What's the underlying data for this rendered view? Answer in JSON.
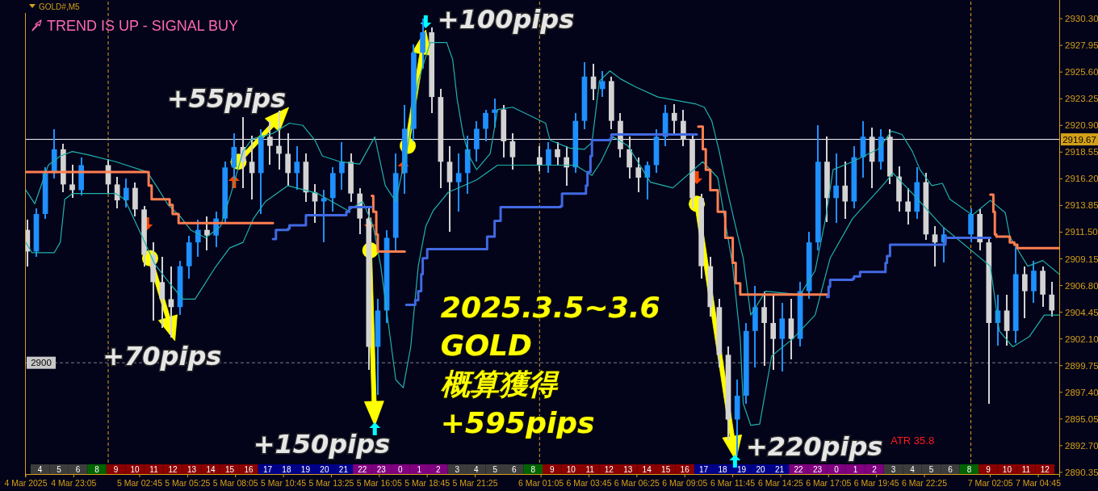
{
  "chart_data": [
    {
      "type": "candlestick",
      "title": "GOLD#,M5",
      "subtitle": "TREND IS UP - SIGNAL BUY",
      "x": [
        "2025-03-04T20:30",
        "2025-03-04T21:00",
        "2025-03-04T21:30",
        "2025-03-04T22:00",
        "2025-03-04T22:30",
        "2025-03-04T23:00",
        "2025-03-04T23:30",
        "2025-03-05T01:00",
        "2025-03-05T01:30",
        "2025-03-05T02:00",
        "2025-03-05T02:30",
        "2025-03-05T03:00",
        "2025-03-05T03:30",
        "2025-03-05T04:00",
        "2025-03-05T04:30",
        "2025-03-05T05:00",
        "2025-03-05T05:30",
        "2025-03-05T06:00",
        "2025-03-05T06:30",
        "2025-03-05T07:00",
        "2025-03-05T07:30",
        "2025-03-05T08:00",
        "2025-03-05T08:30",
        "2025-03-05T09:00",
        "2025-03-05T09:30",
        "2025-03-05T10:00",
        "2025-03-05T10:30",
        "2025-03-05T11:00",
        "2025-03-05T11:30",
        "2025-03-05T12:00",
        "2025-03-05T12:30",
        "2025-03-05T13:00",
        "2025-03-05T13:30",
        "2025-03-05T14:00",
        "2025-03-05T14:30",
        "2025-03-05T15:00",
        "2025-03-05T15:30",
        "2025-03-05T16:00",
        "2025-03-05T16:30",
        "2025-03-05T17:00",
        "2025-03-05T17:30",
        "2025-03-05T18:00",
        "2025-03-05T18:30",
        "2025-03-05T19:00",
        "2025-03-05T19:30",
        "2025-03-05T20:00",
        "2025-03-05T20:30",
        "2025-03-05T21:00",
        "2025-03-05T21:30",
        "2025-03-05T22:00",
        "2025-03-05T22:30",
        "2025-03-05T23:00",
        "2025-03-05T23:30",
        "2025-03-06T01:00",
        "2025-03-06T01:30",
        "2025-03-06T02:00",
        "2025-03-06T02:30",
        "2025-03-06T03:00",
        "2025-03-06T03:30",
        "2025-03-06T04:00",
        "2025-03-06T04:30",
        "2025-03-06T05:00",
        "2025-03-06T05:30",
        "2025-03-06T06:00",
        "2025-03-06T06:30",
        "2025-03-06T07:00",
        "2025-03-06T07:30",
        "2025-03-06T08:00",
        "2025-03-06T08:30",
        "2025-03-06T09:00",
        "2025-03-06T09:30",
        "2025-03-06T10:00",
        "2025-03-06T10:30",
        "2025-03-06T11:00",
        "2025-03-06T11:30",
        "2025-03-06T12:00",
        "2025-03-06T12:30",
        "2025-03-06T13:00",
        "2025-03-06T13:30",
        "2025-03-06T14:00",
        "2025-03-06T14:30",
        "2025-03-06T15:00",
        "2025-03-06T15:30",
        "2025-03-06T16:00",
        "2025-03-06T16:30",
        "2025-03-06T17:00",
        "2025-03-06T17:30",
        "2025-03-06T18:00",
        "2025-03-06T18:30",
        "2025-03-06T19:00",
        "2025-03-06T19:30",
        "2025-03-06T20:00",
        "2025-03-06T20:30",
        "2025-03-06T21:00",
        "2025-03-06T21:30",
        "2025-03-06T22:00",
        "2025-03-06T22:30",
        "2025-03-06T23:00",
        "2025-03-06T23:30",
        "2025-03-07T01:00",
        "2025-03-07T01:30",
        "2025-03-07T02:00",
        "2025-03-07T02:30",
        "2025-03-07T03:00",
        "2025-03-07T03:30",
        "2025-03-07T04:00",
        "2025-03-07T04:30",
        "2025-03-07T05:00",
        "2025-03-07T05:30"
      ],
      "ohlc": [
        [
          2911.7,
          2912.6,
          2908.5,
          2909.8
        ],
        [
          2909.8,
          2913.6,
          2909.3,
          2913.1
        ],
        [
          2913.1,
          2917.2,
          2912.7,
          2916.7
        ],
        [
          2916.7,
          2920.6,
          2916.2,
          2918.8
        ],
        [
          2918.8,
          2919.3,
          2915.0,
          2915.7
        ],
        [
          2915.7,
          2917.4,
          2914.5,
          2915.2
        ],
        [
          2915.2,
          2918.1,
          2914.7,
          2917.4
        ],
        [
          2917.4,
          2917.9,
          2914.9,
          2915.7
        ],
        [
          2915.7,
          2916.4,
          2913.6,
          2914.3
        ],
        [
          2914.3,
          2916.2,
          2913.7,
          2915.4
        ],
        [
          2915.4,
          2915.9,
          2912.9,
          2913.5
        ],
        [
          2913.5,
          2913.8,
          2908.5,
          2909.5
        ],
        [
          2909.5,
          2910.6,
          2903.7,
          2907.1
        ],
        [
          2907.1,
          2909.3,
          2903.1,
          2905.6
        ],
        [
          2905.6,
          2908.5,
          2902.2,
          2904.9
        ],
        [
          2904.9,
          2909.0,
          2904.2,
          2908.5
        ],
        [
          2908.5,
          2911.2,
          2907.4,
          2910.6
        ],
        [
          2910.6,
          2912.6,
          2909.3,
          2911.7
        ],
        [
          2911.7,
          2912.9,
          2909.9,
          2911.2
        ],
        [
          2911.2,
          2913.3,
          2910.2,
          2912.7
        ],
        [
          2912.7,
          2917.7,
          2912.3,
          2917.2
        ],
        [
          2917.2,
          2920.2,
          2916.2,
          2919.0
        ],
        [
          2919.0,
          2921.6,
          2915.4,
          2917.7
        ],
        [
          2917.7,
          2920.0,
          2914.4,
          2916.7
        ],
        [
          2916.7,
          2920.6,
          2913.1,
          2919.9
        ],
        [
          2919.9,
          2921.3,
          2917.4,
          2919.1
        ],
        [
          2919.1,
          2922.2,
          2917.0,
          2918.4
        ],
        [
          2918.4,
          2920.2,
          2915.6,
          2916.7
        ],
        [
          2916.7,
          2919.1,
          2915.2,
          2917.7
        ],
        [
          2917.7,
          2918.4,
          2914.2,
          2915.0
        ],
        [
          2915.0,
          2915.7,
          2912.3,
          2914.2
        ],
        [
          2914.2,
          2915.2,
          2910.6,
          2914.5
        ],
        [
          2914.5,
          2917.2,
          2913.3,
          2916.7
        ],
        [
          2916.7,
          2919.4,
          2915.2,
          2917.7
        ],
        [
          2917.7,
          2918.4,
          2914.2,
          2914.9
        ],
        [
          2914.9,
          2915.4,
          2911.3,
          2912.7
        ],
        [
          2912.7,
          2913.6,
          2899.4,
          2901.4
        ],
        [
          2901.4,
          2905.6,
          2897.2,
          2904.6
        ],
        [
          2904.6,
          2911.7,
          2903.5,
          2911.0
        ],
        [
          2911.0,
          2918.4,
          2909.9,
          2916.7
        ],
        [
          2916.7,
          2922.7,
          2914.9,
          2920.6
        ],
        [
          2920.6,
          2928.0,
          2919.5,
          2927.3
        ],
        [
          2927.3,
          2930.3,
          2925.9,
          2929.1
        ],
        [
          2929.1,
          2929.5,
          2922.0,
          2923.4
        ],
        [
          2923.4,
          2924.1,
          2915.4,
          2917.7
        ],
        [
          2917.7,
          2919.1,
          2911.5,
          2915.9
        ],
        [
          2915.9,
          2918.4,
          2913.3,
          2916.7
        ],
        [
          2916.7,
          2920.0,
          2914.9,
          2918.8
        ],
        [
          2918.8,
          2921.3,
          2917.7,
          2920.6
        ],
        [
          2920.6,
          2922.3,
          2919.5,
          2922.0
        ],
        [
          2922.0,
          2923.3,
          2920.7,
          2922.3
        ],
        [
          2922.3,
          2922.7,
          2918.1,
          2919.5
        ],
        [
          2919.5,
          2920.2,
          2917.0,
          2918.1
        ],
        [
          2918.1,
          2919.1,
          2916.9,
          2917.4
        ],
        [
          2917.4,
          2919.4,
          2916.7,
          2918.8
        ],
        [
          2918.8,
          2919.4,
          2917.4,
          2918.1
        ],
        [
          2918.1,
          2919.1,
          2915.6,
          2917.2
        ],
        [
          2917.2,
          2922.0,
          2916.7,
          2921.3
        ],
        [
          2921.3,
          2926.5,
          2920.6,
          2925.2
        ],
        [
          2925.2,
          2926.3,
          2923.1,
          2924.1
        ],
        [
          2924.1,
          2925.7,
          2923.4,
          2924.8
        ],
        [
          2924.8,
          2925.2,
          2920.6,
          2921.3
        ],
        [
          2921.3,
          2922.0,
          2918.1,
          2918.8
        ],
        [
          2918.8,
          2919.9,
          2916.2,
          2917.2
        ],
        [
          2917.2,
          2918.1,
          2915.0,
          2916.3
        ],
        [
          2916.3,
          2917.7,
          2914.4,
          2917.4
        ],
        [
          2917.4,
          2920.6,
          2916.7,
          2919.9
        ],
        [
          2919.9,
          2922.7,
          2919.1,
          2922.0
        ],
        [
          2922.0,
          2922.8,
          2920.2,
          2921.3
        ],
        [
          2921.3,
          2922.3,
          2919.1,
          2919.7
        ],
        [
          2919.7,
          2920.2,
          2913.6,
          2914.5
        ],
        [
          2914.5,
          2914.9,
          2907.4,
          2908.5
        ],
        [
          2908.5,
          2909.3,
          2904.1,
          2904.9
        ],
        [
          2904.9,
          2905.6,
          2899.6,
          2900.7
        ],
        [
          2900.7,
          2901.4,
          2893.2,
          2895.0
        ],
        [
          2895.0,
          2898.5,
          2891.8,
          2897.1
        ],
        [
          2897.1,
          2903.5,
          2896.4,
          2902.8
        ],
        [
          2902.8,
          2906.8,
          2899.6,
          2904.9
        ],
        [
          2904.9,
          2906.3,
          2899.7,
          2903.5
        ],
        [
          2903.5,
          2906.0,
          2899.4,
          2902.1
        ],
        [
          2902.1,
          2905.3,
          2899.2,
          2903.9
        ],
        [
          2903.9,
          2905.6,
          2900.3,
          2902.1
        ],
        [
          2902.1,
          2907.1,
          2901.4,
          2906.3
        ],
        [
          2906.3,
          2911.5,
          2905.6,
          2910.6
        ],
        [
          2910.6,
          2920.9,
          2909.9,
          2917.7
        ],
        [
          2917.7,
          2919.9,
          2912.4,
          2914.5
        ],
        [
          2914.5,
          2918.4,
          2912.3,
          2915.6
        ],
        [
          2915.6,
          2917.7,
          2912.7,
          2914.2
        ],
        [
          2914.2,
          2919.1,
          2913.6,
          2918.1
        ],
        [
          2918.1,
          2921.3,
          2916.3,
          2919.9
        ],
        [
          2919.9,
          2920.7,
          2915.4,
          2917.7
        ],
        [
          2917.7,
          2920.6,
          2917.0,
          2919.9
        ],
        [
          2919.9,
          2920.6,
          2915.7,
          2916.4
        ],
        [
          2916.4,
          2917.3,
          2913.3,
          2914.2
        ],
        [
          2914.2,
          2915.4,
          2912.2,
          2913.3
        ],
        [
          2913.3,
          2917.2,
          2912.7,
          2915.9
        ],
        [
          2915.9,
          2916.7,
          2910.8,
          2911.3
        ],
        [
          2911.3,
          2912.0,
          2908.5,
          2910.6
        ],
        [
          2910.6,
          2911.9,
          2908.8,
          2911.3
        ],
        [
          2911.3,
          2913.6,
          2910.6,
          2913.1
        ],
        [
          2913.1,
          2913.5,
          2909.9,
          2910.6
        ],
        [
          2910.6,
          2911.0,
          2896.4,
          2903.5
        ],
        [
          2903.5,
          2906.0,
          2901.5,
          2904.6
        ],
        [
          2904.6,
          2906.0,
          2901.5,
          2902.8
        ],
        [
          2902.8,
          2910.2,
          2901.7,
          2907.8
        ],
        [
          2907.8,
          2908.5,
          2903.9,
          2906.3
        ],
        [
          2906.3,
          2909.0,
          2905.3,
          2908.1
        ],
        [
          2908.1,
          2908.5,
          2904.9,
          2906.0
        ],
        [
          2906.0,
          2907.1,
          2904.1,
          2904.6
        ]
      ],
      "colors": [
        "#d3d3d3",
        "#1e90ff",
        "#1e90ff",
        "#1e90ff",
        "#d3d3d3",
        "#d3d3d3",
        "#1e90ff",
        "#d3d3d3",
        "#d3d3d3",
        "#1e90ff",
        "#d3d3d3",
        "#d3d3d3",
        "#d3d3d3",
        "#d3d3d3",
        "#d3d3d3",
        "#1e90ff",
        "#1e90ff",
        "#1e90ff",
        "#d3d3d3",
        "#1e90ff",
        "#1e90ff",
        "#1e90ff",
        "#d3d3d3",
        "#d3d3d3",
        "#1e90ff",
        "#d3d3d3",
        "#d3d3d3",
        "#d3d3d3",
        "#1e90ff",
        "#d3d3d3",
        "#d3d3d3",
        "#1e90ff",
        "#1e90ff",
        "#1e90ff",
        "#d3d3d3",
        "#d3d3d3",
        "#d3d3d3",
        "#1e90ff",
        "#1e90ff",
        "#1e90ff",
        "#1e90ff",
        "#1e90ff",
        "#1e90ff",
        "#d3d3d3",
        "#d3d3d3",
        "#d3d3d3",
        "#1e90ff",
        "#1e90ff",
        "#1e90ff",
        "#1e90ff",
        "#1e90ff",
        "#d3d3d3",
        "#d3d3d3",
        "#d3d3d3",
        "#1e90ff",
        "#d3d3d3",
        "#d3d3d3",
        "#1e90ff",
        "#1e90ff",
        "#d3d3d3",
        "#1e90ff",
        "#d3d3d3",
        "#d3d3d3",
        "#d3d3d3",
        "#d3d3d3",
        "#1e90ff",
        "#1e90ff",
        "#1e90ff",
        "#d3d3d3",
        "#d3d3d3",
        "#d3d3d3",
        "#d3d3d3",
        "#d3d3d3",
        "#d3d3d3",
        "#d3d3d3",
        "#1e90ff",
        "#1e90ff",
        "#1e90ff",
        "#d3d3d3",
        "#d3d3d3",
        "#1e90ff",
        "#d3d3d3",
        "#1e90ff",
        "#1e90ff",
        "#1e90ff",
        "#d3d3d3",
        "#1e90ff",
        "#d3d3d3",
        "#1e90ff",
        "#1e90ff",
        "#d3d3d3",
        "#1e90ff",
        "#d3d3d3",
        "#d3d3d3",
        "#d3d3d3",
        "#1e90ff",
        "#d3d3d3",
        "#d3d3d3",
        "#1e90ff",
        "#1e90ff",
        "#d3d3d3",
        "#d3d3d3",
        "#1e90ff",
        "#d3d3d3",
        "#1e90ff",
        "#d3d3d3",
        "#1e90ff",
        "#d3d3d3",
        "#d3d3d3"
      ],
      "series": [
        {
          "type": "line",
          "color": "#20b2aa",
          "x": [
            "2025-03-04T20:25",
            "2025-03-04T20:55",
            "2025-03-04T21:40",
            "2025-03-04T22:20",
            "2025-03-04T23:00",
            "2025-03-04T23:55",
            "2025-03-05T01:25",
            "2025-03-05T03:10",
            "2025-03-05T03:45",
            "2025-03-05T04:20",
            "2025-03-05T05:00",
            "2025-03-05T05:35",
            "2025-03-05T06:25",
            "2025-03-05T07:15",
            "2025-03-05T07:50",
            "2025-03-05T08:30",
            "2025-03-05T09:00",
            "2025-03-05T10:10",
            "2025-03-05T11:05",
            "2025-03-05T11:50",
            "2025-03-05T12:30",
            "2025-03-05T12:55",
            "2025-03-05T13:55",
            "2025-03-05T15:00",
            "2025-03-05T15:50",
            "2025-03-05T16:25",
            "2025-03-05T17:00",
            "2025-03-05T17:40",
            "2025-03-05T18:15",
            "2025-03-05T18:55",
            "2025-03-05T19:50",
            "2025-03-05T20:10",
            "2025-03-05T20:25",
            "2025-03-05T20:45",
            "2025-03-05T21:05",
            "2025-03-05T21:30",
            "2025-03-05T22:15",
            "2025-03-05T22:40",
            "2025-03-05T23:30",
            "2025-03-06T01:20",
            "2025-03-06T01:35",
            "2025-03-06T02:40",
            "2025-03-06T03:30",
            "2025-03-06T03:55",
            "2025-03-06T04:20",
            "2025-03-06T04:55",
            "2025-03-06T05:30",
            "2025-03-06T06:20",
            "2025-03-06T07:35",
            "2025-03-06T09:40",
            "2025-03-06T10:10",
            "2025-03-06T10:35",
            "2025-03-06T11:00",
            "2025-03-06T11:25",
            "2025-03-06T11:50",
            "2025-03-06T12:20",
            "2025-03-06T12:45",
            "2025-03-06T13:35",
            "2025-03-06T15:30",
            "2025-03-06T16:20",
            "2025-03-06T16:55",
            "2025-03-06T17:20",
            "2025-03-06T18:25",
            "2025-03-06T19:50",
            "2025-03-06T20:35",
            "2025-03-06T21:10",
            "2025-03-06T21:45",
            "2025-03-06T22:10",
            "2025-03-06T22:50",
            "2025-03-06T23:25",
            "2025-03-06T23:50",
            "2025-03-07T01:05",
            "2025-03-07T02:05",
            "2025-03-07T02:55",
            "2025-03-07T03:10",
            "2025-03-07T04:10",
            "2025-03-07T05:00",
            "2025-03-07T05:55"
          ],
          "values": [
            2915.2,
            2914.0,
            2917.4,
            2918.2,
            2918.6,
            2918.3,
            2917.7,
            2916.8,
            2915.4,
            2913.9,
            2912.9,
            2911.7,
            2911.0,
            2912.0,
            2914.9,
            2918.6,
            2919.7,
            2920.2,
            2921.1,
            2920.9,
            2919.6,
            2918.2,
            2917.7,
            2917.5,
            2919.9,
            2915.6,
            2914.2,
            2919.1,
            2924.8,
            2928.2,
            2928.2,
            2926.7,
            2923.2,
            2920.1,
            2918.2,
            2917.0,
            2918.4,
            2922.3,
            2922.5,
            2921.1,
            2919.6,
            2918.9,
            2918.8,
            2919.4,
            2924.8,
            2925.7,
            2925.0,
            2924.3,
            2923.4,
            2922.8,
            2922.5,
            2921.3,
            2918.6,
            2915.4,
            2912.5,
            2909.2,
            2904.2,
            2906.3,
            2906.0,
            2908.1,
            2912.7,
            2917.0,
            2917.7,
            2918.8,
            2920.4,
            2920.1,
            2918.6,
            2917.0,
            2915.6,
            2915.8,
            2914.4,
            2913.0,
            2914.3,
            2913.2,
            2911.1,
            2908.5,
            2909.0,
            2907.8
          ]
        },
        {
          "type": "line",
          "color": "#20b2aa",
          "x": [
            "2025-03-04T20:25",
            "2025-03-04T20:45",
            "2025-03-04T22:00",
            "2025-03-04T22:20",
            "2025-03-04T22:35",
            "2025-03-04T23:00",
            "2025-03-05T01:25",
            "2025-03-05T01:55",
            "2025-03-05T02:50",
            "2025-03-05T03:35",
            "2025-03-05T04:25",
            "2025-03-05T05:10",
            "2025-03-05T05:50",
            "2025-03-05T06:55",
            "2025-03-05T07:45",
            "2025-03-05T08:30",
            "2025-03-05T09:05",
            "2025-03-05T09:45",
            "2025-03-05T11:00",
            "2025-03-05T12:40",
            "2025-03-05T14:20",
            "2025-03-05T15:10",
            "2025-03-05T15:45",
            "2025-03-05T16:10",
            "2025-03-05T16:35",
            "2025-03-05T17:00",
            "2025-03-05T17:25",
            "2025-03-05T17:50",
            "2025-03-05T18:15",
            "2025-03-05T18:40",
            "2025-03-05T19:05",
            "2025-03-05T19:55",
            "2025-03-05T21:30",
            "2025-03-05T22:40",
            "2025-03-06T03:00",
            "2025-03-06T03:55",
            "2025-03-06T04:25",
            "2025-03-06T05:05",
            "2025-03-06T05:55",
            "2025-03-06T07:10",
            "2025-03-06T08:25",
            "2025-03-06T10:05",
            "2025-03-06T10:55",
            "2025-03-06T11:45",
            "2025-03-06T12:10",
            "2025-03-06T12:20",
            "2025-03-06T12:45",
            "2025-03-06T13:15",
            "2025-03-06T13:55",
            "2025-03-06T15:05",
            "2025-03-06T16:20",
            "2025-03-06T17:10",
            "2025-03-06T18:25",
            "2025-03-06T20:05",
            "2025-03-06T20:40",
            "2025-03-06T21:45",
            "2025-03-06T23:25",
            "2025-03-07T02:05",
            "2025-03-07T02:35",
            "2025-03-07T03:20",
            "2025-03-07T04:15",
            "2025-03-07T05:05",
            "2025-03-07T05:55"
          ],
          "values": [
            2910.6,
            2909.7,
            2909.7,
            2910.6,
            2914.4,
            2914.9,
            2914.9,
            2914.4,
            2911.3,
            2908.7,
            2907.0,
            2905.6,
            2905.6,
            2908.3,
            2910.1,
            2910.6,
            2912.7,
            2914.2,
            2915.6,
            2914.9,
            2913.4,
            2914.2,
            2912.0,
            2908.5,
            2903.5,
            2898.5,
            2897.8,
            2901.4,
            2908.5,
            2912.0,
            2913.4,
            2915.0,
            2916.1,
            2917.4,
            2917.4,
            2916.5,
            2917.7,
            2919.9,
            2919.1,
            2915.9,
            2915.4,
            2917.7,
            2916.3,
            2908.5,
            2902.1,
            2896.4,
            2894.5,
            2894.6,
            2900.6,
            2902.1,
            2904.2,
            2909.2,
            2912.7,
            2915.6,
            2916.7,
            2914.9,
            2912.0,
            2908.5,
            2902.8,
            2901.4,
            2902.3,
            2904.2,
            2904.2
          ]
        },
        {
          "type": "step",
          "color": "#ff7f50",
          "x": [
            "2025-03-04T20:25",
            "2025-03-05T03:10",
            "2025-03-05T03:15",
            "2025-03-05T03:25",
            "2025-03-05T04:20",
            "2025-03-05T04:25",
            "2025-03-05T04:35",
            "2025-03-05T04:55",
            "2025-03-05T10:10"
          ],
          "values": [
            2916.8,
            2916.8,
            2915.6,
            2914.4,
            2914.4,
            2913.9,
            2913.1,
            2912.3,
            2912.3
          ]
        },
        {
          "type": "step",
          "color": "#ff7f50",
          "x": [
            "2025-03-05T15:40",
            "2025-03-05T15:45",
            "2025-03-05T15:55",
            "2025-03-05T16:00",
            "2025-03-05T17:30"
          ],
          "values": [
            2914.7,
            2913.3,
            2911.3,
            2909.8,
            2909.8
          ]
        },
        {
          "type": "step",
          "color": "#ff7f50",
          "x": [
            "2025-03-06T09:50",
            "2025-03-06T10:05",
            "2025-03-06T10:15",
            "2025-03-06T10:30",
            "2025-03-06T10:55",
            "2025-03-06T11:20",
            "2025-03-06T11:45",
            "2025-03-06T11:55",
            "2025-03-06T12:10",
            "2025-03-06T17:00"
          ],
          "values": [
            2920.8,
            2918.8,
            2917.0,
            2915.2,
            2913.3,
            2911.0,
            2908.8,
            2907.0,
            2906.0,
            2906.0
          ]
        },
        {
          "type": "step",
          "color": "#ff7f50",
          "x": [
            "2025-03-07T02:05",
            "2025-03-07T02:15",
            "2025-03-07T02:20",
            "2025-03-07T02:25",
            "2025-03-07T03:05",
            "2025-03-07T03:10",
            "2025-03-07T03:25",
            "2025-03-07T03:35",
            "2025-03-07T05:55"
          ],
          "values": [
            2914.8,
            2913.3,
            2911.3,
            2911.1,
            2911.1,
            2910.6,
            2910.4,
            2910.1,
            2910.1
          ]
        },
        {
          "type": "step",
          "color": "#4169e1",
          "x": [
            "2025-03-05T10:10",
            "2025-03-05T10:20",
            "2025-03-05T11:00",
            "2025-03-05T11:05",
            "2025-03-05T11:55",
            "2025-03-05T12:00",
            "2025-03-05T14:05",
            "2025-03-05T14:15",
            "2025-03-05T14:25",
            "2025-03-05T15:40"
          ],
          "values": [
            2910.9,
            2911.7,
            2911.8,
            2912.1,
            2912.1,
            2913.0,
            2913.0,
            2913.3,
            2913.7,
            2913.7
          ]
        },
        {
          "type": "step",
          "color": "#4169e1",
          "x": [
            "2025-03-05T17:35",
            "2025-03-05T18:05",
            "2025-03-05T18:15",
            "2025-03-05T18:25",
            "2025-03-05T18:30",
            "2025-03-05T18:45",
            "2025-03-05T21:55",
            "2025-03-05T22:05",
            "2025-03-05T22:30",
            "2025-03-05T22:50",
            "2025-03-06T02:10",
            "2025-03-06T02:15",
            "2025-03-06T03:30",
            "2025-03-06T03:35",
            "2025-03-06T03:40",
            "2025-03-06T03:50",
            "2025-03-06T03:55",
            "2025-03-06T04:55",
            "2025-03-06T05:00",
            "2025-03-06T09:45"
          ],
          "values": [
            2905.1,
            2905.5,
            2906.3,
            2907.8,
            2909.2,
            2910.0,
            2910.0,
            2911.1,
            2912.5,
            2913.7,
            2913.8,
            2914.9,
            2914.9,
            2915.6,
            2916.8,
            2918.2,
            2919.6,
            2919.7,
            2920.1,
            2920.1
          ]
        },
        {
          "type": "step",
          "color": "#4169e1",
          "x": [
            "2025-03-06T17:00",
            "2025-03-06T17:05",
            "2025-03-06T17:10",
            "2025-03-06T18:25",
            "2025-03-06T18:30",
            "2025-03-06T18:50",
            "2025-03-06T20:10",
            "2025-03-06T20:15",
            "2025-03-06T20:20",
            "2025-03-06T20:30",
            "2025-03-06T23:30",
            "2025-03-06T23:35",
            "2025-03-07T02:05"
          ],
          "values": [
            2905.8,
            2906.7,
            2907.3,
            2907.4,
            2907.6,
            2908.0,
            2908.0,
            2908.8,
            2909.4,
            2910.4,
            2910.4,
            2911.0,
            2911.0
          ]
        },
        {
          "type": "scatter",
          "color": "#ffff00",
          "marker": "circle",
          "x": [
            "2025-03-05T03:20",
            "2025-03-05T08:15",
            "2025-03-05T15:35",
            "2025-03-05T17:40",
            "2025-03-06T09:45"
          ],
          "values": [
            2909.2,
            2917.7,
            2909.9,
            2919.1,
            2914.0
          ]
        }
      ],
      "xlim": [
        "2025-03-04T20:25",
        "2025-03-07T05:55"
      ],
      "xticks": [
        {
          "value": "2025-03-04T20:25",
          "label": "4 Mar 2025"
        },
        {
          "value": "2025-03-04T23:05",
          "label": "4 Mar 23:05"
        },
        {
          "value": "2025-03-05T02:45",
          "label": "5 Mar 02:45"
        },
        {
          "value": "2025-03-05T05:25",
          "label": "5 Mar 05:25"
        },
        {
          "value": "2025-03-05T08:05",
          "label": "5 Mar 08:05"
        },
        {
          "value": "2025-03-05T10:45",
          "label": "5 Mar 10:45"
        },
        {
          "value": "2025-03-05T13:25",
          "label": "5 Mar 13:25"
        },
        {
          "value": "2025-03-05T16:05",
          "label": "5 Mar 16:05"
        },
        {
          "value": "2025-03-05T18:45",
          "label": "5 Mar 18:45"
        },
        {
          "value": "2025-03-05T21:25",
          "label": "5 Mar 21:25"
        },
        {
          "value": "2025-03-06T01:05",
          "label": "6 Mar 01:05"
        },
        {
          "value": "2025-03-06T03:45",
          "label": "6 Mar 03:45"
        },
        {
          "value": "2025-03-06T06:25",
          "label": "6 Mar 06:25"
        },
        {
          "value": "2025-03-06T09:05",
          "label": "6 Mar 09:05"
        },
        {
          "value": "2025-03-06T11:45",
          "label": "6 Mar 11:45"
        },
        {
          "value": "2025-03-06T14:25",
          "label": "6 Mar 14:25"
        },
        {
          "value": "2025-03-06T17:05",
          "label": "6 Mar 17:05"
        },
        {
          "value": "2025-03-06T19:45",
          "label": "6 Mar 19:45"
        },
        {
          "value": "2025-03-06T22:25",
          "label": "6 Mar 22:25"
        },
        {
          "value": "2025-03-07T02:05",
          "label": "7 Mar 02:05"
        },
        {
          "value": "2025-03-07T04:45",
          "label": "7 Mar 04:45"
        }
      ],
      "ylim": [
        2890.2,
        2931.8
      ],
      "yticks": [
        {
          "value": 2930.3,
          "label": "2930.30"
        },
        {
          "value": 2927.95,
          "label": "2927.95"
        },
        {
          "value": 2925.6,
          "label": "2925.60"
        },
        {
          "value": 2923.25,
          "label": "2923.25"
        },
        {
          "value": 2920.9,
          "label": "2920.90"
        },
        {
          "value": 2918.55,
          "label": "2918.55"
        },
        {
          "value": 2916.2,
          "label": "2916.20"
        },
        {
          "value": 2913.85,
          "label": "2913.85"
        },
        {
          "value": 2911.5,
          "label": "2911.50"
        },
        {
          "value": 2909.15,
          "label": "2909.15"
        },
        {
          "value": 2906.8,
          "label": "2906.80"
        },
        {
          "value": 2904.45,
          "label": "2904.45"
        },
        {
          "value": 2902.1,
          "label": "2902.10"
        },
        {
          "value": 2899.75,
          "label": "2899.75"
        },
        {
          "value": 2897.4,
          "label": "2897.40"
        },
        {
          "value": 2895.05,
          "label": "2895.05"
        },
        {
          "value": 2892.7,
          "label": "2892.70"
        },
        {
          "value": 2890.35,
          "label": "2890.35"
        }
      ],
      "ref_lines": [
        {
          "axis": "y",
          "value": 2919.67,
          "label": "2919.67",
          "color": "#ffffff",
          "line_style": "solid"
        },
        {
          "axis": "y",
          "value": 2900,
          "label": "2900",
          "color": "#808080",
          "line_style": "dashed"
        },
        {
          "axis": "x",
          "value": "2025-03-05T01:00",
          "color": "#daa520",
          "line_style": "dashed"
        },
        {
          "axis": "x",
          "value": "2025-03-06T01:00",
          "color": "#daa520",
          "line_style": "dashed"
        },
        {
          "axis": "x",
          "value": "2025-03-07T01:00",
          "color": "#daa520",
          "line_style": "dashed"
        }
      ],
      "annotations": [
        "+55pips",
        "+100pips",
        "+70pips",
        "+150pips",
        "+220pips",
        "2025.3.5~3.6\nGOLD\n概算獲得\n+595pips",
        "ATR 35.8"
      ]
    },
    {
      "type": "heatmap",
      "categories": [
        null,
        null,
        null,
        null,
        null,
        null,
        null,
        null,
        null,
        null,
        null,
        null,
        null,
        null,
        null,
        null,
        null,
        null,
        null,
        null,
        null,
        null,
        null,
        null,
        null,
        null,
        null,
        null,
        null,
        null,
        null,
        null,
        null,
        null,
        null,
        null,
        null,
        null,
        null,
        null,
        null,
        null,
        null,
        null,
        null,
        null,
        null,
        null,
        null,
        null,
        null,
        null,
        null,
        null
      ],
      "y_categories": [
        null
      ],
      "cells": [
        [
          4,
          5,
          6,
          8,
          9,
          10,
          11,
          12,
          13,
          14,
          15,
          16,
          17,
          18,
          19,
          20,
          21,
          22,
          23,
          0,
          1,
          2,
          3,
          4,
          5,
          6,
          8,
          9,
          10,
          11,
          12,
          13,
          14,
          15,
          16,
          17,
          18,
          19,
          20,
          21,
          22,
          23,
          0,
          1,
          2,
          3,
          4,
          5,
          6,
          8,
          9,
          10,
          11,
          12
        ]
      ],
      "colors": [
        "#3c3c3c",
        "#3c3c3c",
        "#3c3c3c",
        "#006400",
        "#8b0000",
        "#8b0000",
        "#8b0000",
        "#8b0000",
        "#8b0000",
        "#8b0000",
        "#8b0000",
        "#8b0000",
        "#00008b",
        "#00008b",
        "#00008b",
        "#00008b",
        "#00008b",
        "#800080",
        "#800080",
        "#800080",
        "#800080",
        "#800080",
        "#3c3c3c",
        "#3c3c3c",
        "#3c3c3c",
        "#3c3c3c",
        "#006400",
        "#8b0000",
        "#8b0000",
        "#8b0000",
        "#8b0000",
        "#8b0000",
        "#8b0000",
        "#8b0000",
        "#8b0000",
        "#00008b",
        "#00008b",
        "#00008b",
        "#00008b",
        "#00008b",
        "#800080",
        "#800080",
        "#800080",
        "#800080",
        "#800080",
        "#3c3c3c",
        "#3c3c3c",
        "#3c3c3c",
        "#3c3c3c",
        "#006400",
        "#8b0000",
        "#8b0000",
        "#8b0000",
        "#8b0000"
      ],
      "data_labels": true
    }
  ]
}
